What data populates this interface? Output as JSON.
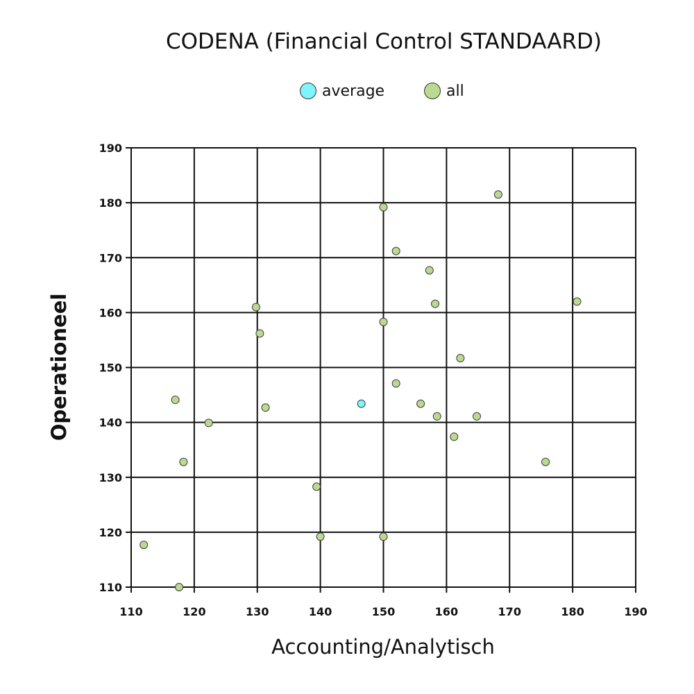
{
  "chart_data": {
    "type": "scatter",
    "title": "CODENA (Financial Control STANDAARD)",
    "xlabel": "Accounting/Analytisch",
    "ylabel": "Operationeel",
    "xlim": [
      110,
      190
    ],
    "ylim": [
      110,
      190
    ],
    "xticks": [
      "110",
      "120",
      "130",
      "140",
      "150",
      "160",
      "170",
      "180",
      "190"
    ],
    "yticks": [
      "110",
      "120",
      "130",
      "140",
      "150",
      "160",
      "170",
      "180",
      "190"
    ],
    "grid": true,
    "legend_placement": "top-center",
    "series": [
      {
        "name": "average",
        "color": "#7ff4fb",
        "points": [
          [
            146.5,
            143.4
          ]
        ]
      },
      {
        "name": "all",
        "color": "#bcd992",
        "points": [
          [
            168.2,
            181.5
          ],
          [
            150.0,
            179.2
          ],
          [
            152.0,
            171.2
          ],
          [
            157.3,
            167.7
          ],
          [
            158.2,
            161.6
          ],
          [
            180.7,
            162.0
          ],
          [
            129.8,
            161.0
          ],
          [
            150.0,
            158.3
          ],
          [
            130.4,
            156.2
          ],
          [
            162.2,
            151.7
          ],
          [
            152.0,
            147.1
          ],
          [
            117.0,
            144.1
          ],
          [
            155.9,
            143.4
          ],
          [
            131.3,
            142.7
          ],
          [
            158.5,
            141.1
          ],
          [
            164.8,
            141.1
          ],
          [
            122.3,
            139.9
          ],
          [
            161.2,
            137.4
          ],
          [
            118.3,
            132.8
          ],
          [
            175.7,
            132.8
          ],
          [
            139.4,
            128.3
          ],
          [
            112.0,
            117.7
          ],
          [
            140.0,
            119.2
          ],
          [
            150.0,
            119.2
          ],
          [
            117.6,
            110.0
          ]
        ]
      }
    ]
  }
}
